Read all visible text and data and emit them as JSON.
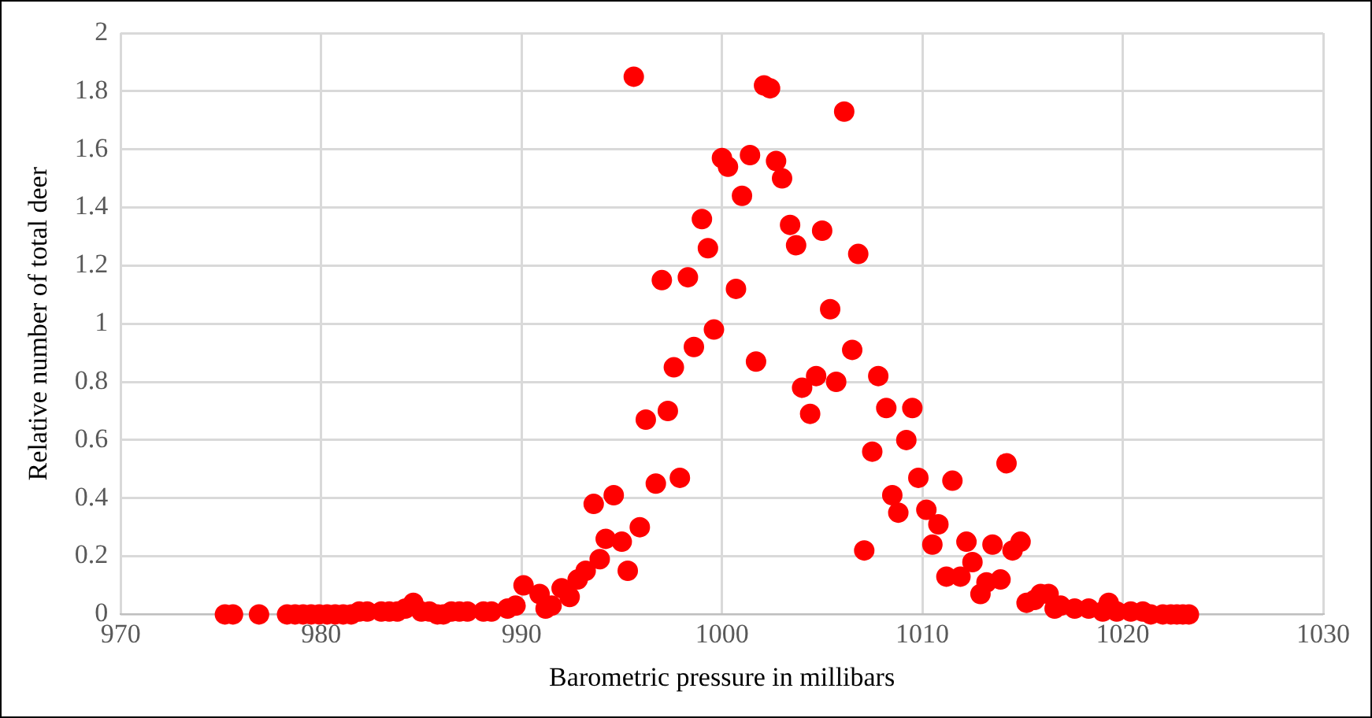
{
  "chart_data": {
    "type": "scatter",
    "xlabel": "Barometric pressure in millibars",
    "ylabel": "Relative number of total deer",
    "x": [
      975.2,
      975.6,
      976.9,
      978.3,
      978.7,
      979.1,
      979.5,
      979.9,
      980.3,
      980.7,
      981.1,
      981.5,
      981.9,
      982.3,
      983,
      983.4,
      983.8,
      984.2,
      984.6,
      985,
      985.4,
      985.8,
      986.1,
      986.5,
      986.9,
      987.3,
      988.1,
      988.5,
      989.3,
      989.7,
      990.1,
      990.9,
      991.2,
      991.5,
      992,
      992.4,
      992.8,
      993.2,
      993.6,
      993.9,
      994.2,
      994.6,
      995,
      995.3,
      995.6,
      995.9,
      996.2,
      996.7,
      997,
      997.3,
      997.6,
      997.9,
      998.3,
      998.6,
      999,
      999.3,
      999.6,
      1000,
      1000.3,
      1000.7,
      1001,
      1001.4,
      1001.7,
      1002.1,
      1002.4,
      1002.7,
      1003,
      1003.4,
      1003.7,
      1004,
      1004.4,
      1004.7,
      1005,
      1005.4,
      1005.7,
      1006.1,
      1006.5,
      1006.8,
      1007.1,
      1007.5,
      1007.8,
      1008.2,
      1008.5,
      1008.8,
      1009.2,
      1009.5,
      1009.8,
      1010.2,
      1010.5,
      1010.8,
      1011.2,
      1011.5,
      1011.9,
      1012.2,
      1012.5,
      1012.9,
      1013.2,
      1013.5,
      1013.9,
      1014.2,
      1014.5,
      1014.9,
      1015.2,
      1015.6,
      1015.9,
      1016.3,
      1016.6,
      1016.9,
      1017.6,
      1018.3,
      1019,
      1019.3,
      1019.7,
      1020.4,
      1021,
      1021.4,
      1022,
      1022.4,
      1022.7,
      1023,
      1023.3
    ],
    "series": [
      {
        "color": "#ff0000",
        "values": [
          0,
          0,
          0,
          0,
          0,
          0,
          0,
          0,
          0,
          0,
          0,
          0,
          0.01,
          0.01,
          0.01,
          0.01,
          0.01,
          0.02,
          0.04,
          0.01,
          0.01,
          0,
          0,
          0.01,
          0.01,
          0.01,
          0.01,
          0.01,
          0.02,
          0.03,
          0.1,
          0.07,
          0.02,
          0.03,
          0.09,
          0.06,
          0.12,
          0.15,
          0.38,
          0.19,
          0.26,
          0.41,
          0.25,
          0.15,
          1.85,
          0.3,
          0.67,
          0.45,
          1.15,
          0.7,
          0.85,
          0.47,
          1.16,
          0.92,
          1.36,
          1.26,
          0.98,
          1.57,
          1.54,
          1.12,
          1.44,
          1.58,
          0.87,
          1.82,
          1.81,
          1.56,
          1.5,
          1.34,
          1.27,
          0.78,
          0.69,
          0.82,
          1.32,
          1.05,
          0.8,
          1.73,
          0.91,
          1.24,
          0.22,
          0.56,
          0.82,
          0.71,
          0.41,
          0.35,
          0.6,
          0.71,
          0.47,
          0.36,
          0.24,
          0.31,
          0.13,
          0.46,
          0.13,
          0.25,
          0.18,
          0.07,
          0.11,
          0.24,
          0.12,
          0.52,
          0.22,
          0.25,
          0.04,
          0.05,
          0.07,
          0.07,
          0.02,
          0.03,
          0.02,
          0.02,
          0.01,
          0.04,
          0.01,
          0.01,
          0.01,
          0,
          0,
          0,
          0,
          0,
          0
        ]
      }
    ],
    "xlim": [
      970,
      1030
    ],
    "xticks": [
      970,
      980,
      990,
      1000,
      1010,
      1020,
      1030
    ],
    "ylim": [
      0,
      2
    ],
    "yticks": [
      0,
      0.2,
      0.4,
      0.6,
      0.8,
      1,
      1.2,
      1.4,
      1.6,
      1.8,
      2
    ],
    "grid": true,
    "marker": "circle",
    "legend": false
  }
}
